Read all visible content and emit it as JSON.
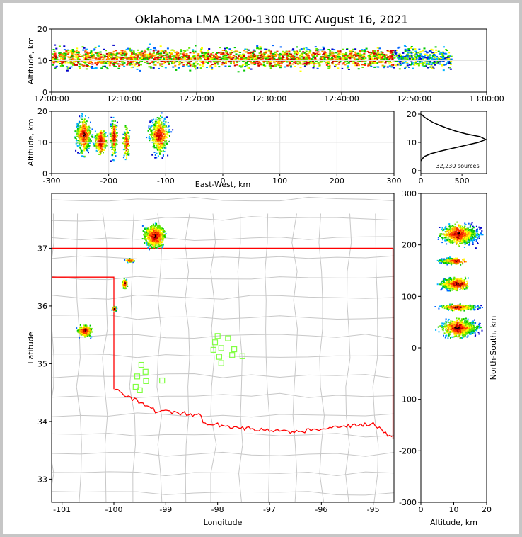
{
  "figure": {
    "title": "Oklahoma LMA 1200-1300 UTC August 16, 2021",
    "source_count_label": "32,230 sources"
  },
  "chart_data": [
    {
      "panel": "altitude-vs-time",
      "type": "heatmap",
      "ylabel": "Altitude, km",
      "xlabel": "",
      "xlim": [
        "12:00:00",
        "13:00:00"
      ],
      "ylim": [
        0,
        20
      ],
      "xticks": [
        "12:00:00",
        "12:10:00",
        "12:20:00",
        "12:30:00",
        "12:40:00",
        "12:50:00",
        "13:00:00"
      ],
      "yticks": [
        "0",
        "10",
        "20"
      ],
      "grid": true,
      "density_band": {
        "altitude_center_km": 11,
        "altitude_range_km": [
          3,
          20
        ],
        "time_start": "12:00:00",
        "time_end": "12:55:00"
      }
    },
    {
      "panel": "altitude-vs-east-west",
      "type": "heatmap",
      "ylabel": "Altitude, km",
      "xlabel": "East-West, km",
      "xlim": [
        -300,
        300
      ],
      "ylim": [
        0,
        20
      ],
      "xticks": [
        "-300",
        "-200",
        "-100",
        "0",
        "100",
        "200",
        "300"
      ],
      "yticks": [
        "0",
        "10",
        "20"
      ],
      "grid": true,
      "clusters": [
        {
          "x_center_km": -245,
          "x_width_km": 30,
          "z_range_km": [
            5,
            20
          ]
        },
        {
          "x_center_km": -215,
          "x_width_km": 25,
          "z_range_km": [
            6,
            15
          ]
        },
        {
          "x_center_km": -192,
          "x_width_km": 14,
          "z_range_km": [
            4,
            20
          ]
        },
        {
          "x_center_km": -170,
          "x_width_km": 12,
          "z_range_km": [
            4,
            16
          ]
        },
        {
          "x_center_km": -112,
          "x_width_km": 38,
          "z_range_km": [
            5,
            20
          ]
        }
      ]
    },
    {
      "panel": "altitude-histogram",
      "type": "line",
      "xlabel": "",
      "ylabel": "",
      "xlim": [
        0,
        800
      ],
      "ylim": [
        0,
        20
      ],
      "xticks": [
        "0",
        "500"
      ],
      "yticks": [
        "0",
        "10",
        "20"
      ],
      "points": [
        [
          0,
          3.5
        ],
        [
          40,
          5
        ],
        [
          120,
          6
        ],
        [
          250,
          7
        ],
        [
          400,
          8
        ],
        [
          550,
          9
        ],
        [
          700,
          10
        ],
        [
          790,
          11
        ],
        [
          720,
          12
        ],
        [
          550,
          13
        ],
        [
          420,
          14
        ],
        [
          320,
          15
        ],
        [
          230,
          16
        ],
        [
          150,
          17
        ],
        [
          90,
          18
        ],
        [
          40,
          19
        ],
        [
          5,
          20
        ]
      ]
    },
    {
      "panel": "plan-view",
      "type": "scatter",
      "xlabel": "Longitude",
      "ylabel": "Latitude",
      "xlim": [
        -101.2,
        -94.6
      ],
      "ylim": [
        32.6,
        37.95
      ],
      "xticks": [
        "-101",
        "-100",
        "-99",
        "-98",
        "-97",
        "-96",
        "-95"
      ],
      "yticks": [
        "33",
        "34",
        "35",
        "36",
        "37"
      ],
      "grid": false,
      "state_boundary_color": "#ff0000",
      "county_line_color": "#c8c8c8",
      "station_color": "#80ff40",
      "stations": [
        {
          "lon": -98.0,
          "lat": 35.48
        },
        {
          "lon": -98.05,
          "lat": 35.37
        },
        {
          "lon": -97.93,
          "lat": 35.27
        },
        {
          "lon": -98.08,
          "lat": 35.24
        },
        {
          "lon": -97.8,
          "lat": 35.44
        },
        {
          "lon": -97.68,
          "lat": 35.25
        },
        {
          "lon": -97.97,
          "lat": 35.12
        },
        {
          "lon": -97.72,
          "lat": 35.15
        },
        {
          "lon": -97.52,
          "lat": 35.13
        },
        {
          "lon": -97.93,
          "lat": 35.01
        },
        {
          "lon": -99.47,
          "lat": 34.98
        },
        {
          "lon": -99.39,
          "lat": 34.86
        },
        {
          "lon": -99.55,
          "lat": 34.78
        },
        {
          "lon": -99.38,
          "lat": 34.7
        },
        {
          "lon": -99.07,
          "lat": 34.71
        },
        {
          "lon": -99.58,
          "lat": 34.6
        },
        {
          "lon": -99.5,
          "lat": 34.54
        }
      ],
      "clusters": [
        {
          "lon": -99.22,
          "lat": 37.22,
          "r_lon": 0.3,
          "r_lat": 0.28
        },
        {
          "lon": -100.57,
          "lat": 35.58,
          "r_lon": 0.2,
          "r_lat": 0.16
        },
        {
          "lon": -100.0,
          "lat": 35.96,
          "r_lon": 0.06,
          "r_lat": 0.06
        },
        {
          "lon": -99.8,
          "lat": 36.4,
          "r_lon": 0.07,
          "r_lat": 0.12
        },
        {
          "lon": -99.7,
          "lat": 36.8,
          "r_lon": 0.12,
          "r_lat": 0.04
        }
      ]
    },
    {
      "panel": "north-south-vs-altitude",
      "type": "heatmap",
      "xlabel": "Altitude, km",
      "ylabel": "North-South, km",
      "xlim": [
        0,
        20
      ],
      "ylim": [
        -300,
        300
      ],
      "xticks": [
        "0",
        "10",
        "20"
      ],
      "yticks": [
        "-300",
        "-200",
        "-100",
        "0",
        "100",
        "200",
        "300"
      ],
      "clusters": [
        {
          "ns_center_km": 222,
          "ns_range_km": [
            195,
            248
          ],
          "alt_range_km": [
            4,
            20
          ]
        },
        {
          "ns_center_km": 170,
          "ns_range_km": [
            162,
            178
          ],
          "alt_range_km": [
            4,
            14
          ]
        },
        {
          "ns_center_km": 125,
          "ns_range_km": [
            108,
            140
          ],
          "alt_range_km": [
            4,
            16
          ]
        },
        {
          "ns_center_km": 80,
          "ns_range_km": [
            72,
            88
          ],
          "alt_range_km": [
            3,
            20
          ]
        },
        {
          "ns_center_km": 40,
          "ns_range_km": [
            15,
            62
          ],
          "alt_range_km": [
            4,
            20
          ]
        }
      ]
    }
  ]
}
